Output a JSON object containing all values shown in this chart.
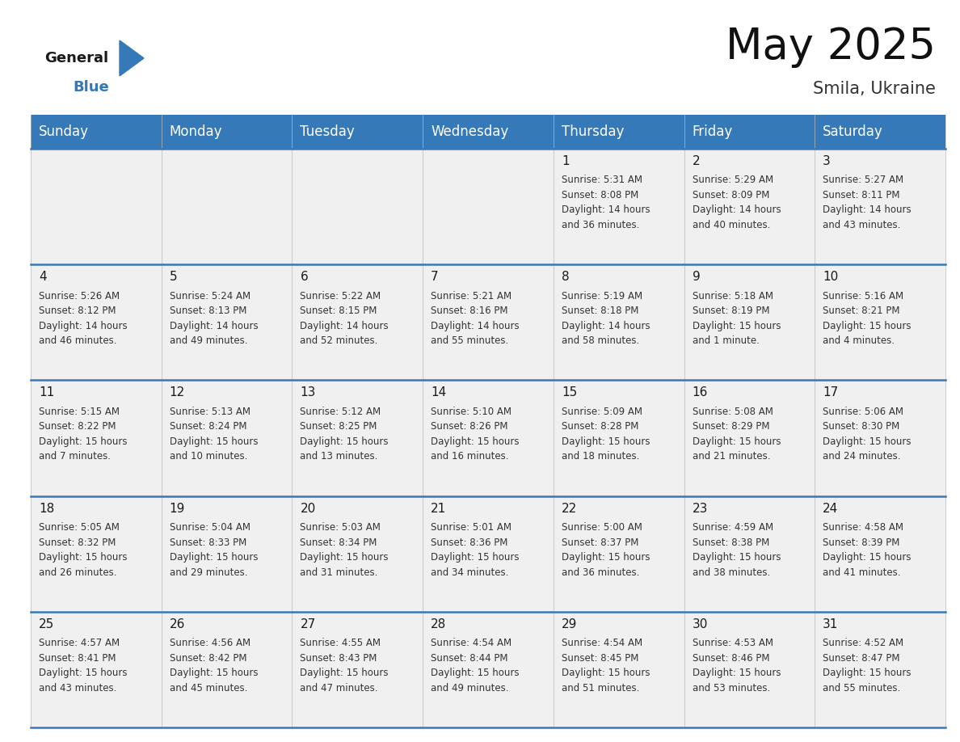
{
  "title": "May 2025",
  "subtitle": "Smila, Ukraine",
  "header_color": "#3579b8",
  "header_text_color": "#ffffff",
  "bg_color": "#ffffff",
  "cell_bg": "#f0f0f0",
  "day_headers": [
    "Sunday",
    "Monday",
    "Tuesday",
    "Wednesday",
    "Thursday",
    "Friday",
    "Saturday"
  ],
  "title_fontsize": 38,
  "subtitle_fontsize": 15,
  "header_fontsize": 12,
  "cell_day_fontsize": 11,
  "cell_text_fontsize": 8.5,
  "weeks": [
    [
      {
        "day": "",
        "sunrise": "",
        "sunset": "",
        "daylight": ""
      },
      {
        "day": "",
        "sunrise": "",
        "sunset": "",
        "daylight": ""
      },
      {
        "day": "",
        "sunrise": "",
        "sunset": "",
        "daylight": ""
      },
      {
        "day": "",
        "sunrise": "",
        "sunset": "",
        "daylight": ""
      },
      {
        "day": "1",
        "sunrise": "5:31 AM",
        "sunset": "8:08 PM",
        "daylight": "14 hours and 36 minutes."
      },
      {
        "day": "2",
        "sunrise": "5:29 AM",
        "sunset": "8:09 PM",
        "daylight": "14 hours and 40 minutes."
      },
      {
        "day": "3",
        "sunrise": "5:27 AM",
        "sunset": "8:11 PM",
        "daylight": "14 hours and 43 minutes."
      }
    ],
    [
      {
        "day": "4",
        "sunrise": "5:26 AM",
        "sunset": "8:12 PM",
        "daylight": "14 hours and 46 minutes."
      },
      {
        "day": "5",
        "sunrise": "5:24 AM",
        "sunset": "8:13 PM",
        "daylight": "14 hours and 49 minutes."
      },
      {
        "day": "6",
        "sunrise": "5:22 AM",
        "sunset": "8:15 PM",
        "daylight": "14 hours and 52 minutes."
      },
      {
        "day": "7",
        "sunrise": "5:21 AM",
        "sunset": "8:16 PM",
        "daylight": "14 hours and 55 minutes."
      },
      {
        "day": "8",
        "sunrise": "5:19 AM",
        "sunset": "8:18 PM",
        "daylight": "14 hours and 58 minutes."
      },
      {
        "day": "9",
        "sunrise": "5:18 AM",
        "sunset": "8:19 PM",
        "daylight": "15 hours and 1 minute."
      },
      {
        "day": "10",
        "sunrise": "5:16 AM",
        "sunset": "8:21 PM",
        "daylight": "15 hours and 4 minutes."
      }
    ],
    [
      {
        "day": "11",
        "sunrise": "5:15 AM",
        "sunset": "8:22 PM",
        "daylight": "15 hours and 7 minutes."
      },
      {
        "day": "12",
        "sunrise": "5:13 AM",
        "sunset": "8:24 PM",
        "daylight": "15 hours and 10 minutes."
      },
      {
        "day": "13",
        "sunrise": "5:12 AM",
        "sunset": "8:25 PM",
        "daylight": "15 hours and 13 minutes."
      },
      {
        "day": "14",
        "sunrise": "5:10 AM",
        "sunset": "8:26 PM",
        "daylight": "15 hours and 16 minutes."
      },
      {
        "day": "15",
        "sunrise": "5:09 AM",
        "sunset": "8:28 PM",
        "daylight": "15 hours and 18 minutes."
      },
      {
        "day": "16",
        "sunrise": "5:08 AM",
        "sunset": "8:29 PM",
        "daylight": "15 hours and 21 minutes."
      },
      {
        "day": "17",
        "sunrise": "5:06 AM",
        "sunset": "8:30 PM",
        "daylight": "15 hours and 24 minutes."
      }
    ],
    [
      {
        "day": "18",
        "sunrise": "5:05 AM",
        "sunset": "8:32 PM",
        "daylight": "15 hours and 26 minutes."
      },
      {
        "day": "19",
        "sunrise": "5:04 AM",
        "sunset": "8:33 PM",
        "daylight": "15 hours and 29 minutes."
      },
      {
        "day": "20",
        "sunrise": "5:03 AM",
        "sunset": "8:34 PM",
        "daylight": "15 hours and 31 minutes."
      },
      {
        "day": "21",
        "sunrise": "5:01 AM",
        "sunset": "8:36 PM",
        "daylight": "15 hours and 34 minutes."
      },
      {
        "day": "22",
        "sunrise": "5:00 AM",
        "sunset": "8:37 PM",
        "daylight": "15 hours and 36 minutes."
      },
      {
        "day": "23",
        "sunrise": "4:59 AM",
        "sunset": "8:38 PM",
        "daylight": "15 hours and 38 minutes."
      },
      {
        "day": "24",
        "sunrise": "4:58 AM",
        "sunset": "8:39 PM",
        "daylight": "15 hours and 41 minutes."
      }
    ],
    [
      {
        "day": "25",
        "sunrise": "4:57 AM",
        "sunset": "8:41 PM",
        "daylight": "15 hours and 43 minutes."
      },
      {
        "day": "26",
        "sunrise": "4:56 AM",
        "sunset": "8:42 PM",
        "daylight": "15 hours and 45 minutes."
      },
      {
        "day": "27",
        "sunrise": "4:55 AM",
        "sunset": "8:43 PM",
        "daylight": "15 hours and 47 minutes."
      },
      {
        "day": "28",
        "sunrise": "4:54 AM",
        "sunset": "8:44 PM",
        "daylight": "15 hours and 49 minutes."
      },
      {
        "day": "29",
        "sunrise": "4:54 AM",
        "sunset": "8:45 PM",
        "daylight": "15 hours and 51 minutes."
      },
      {
        "day": "30",
        "sunrise": "4:53 AM",
        "sunset": "8:46 PM",
        "daylight": "15 hours and 53 minutes."
      },
      {
        "day": "31",
        "sunrise": "4:52 AM",
        "sunset": "8:47 PM",
        "daylight": "15 hours and 55 minutes."
      }
    ]
  ]
}
